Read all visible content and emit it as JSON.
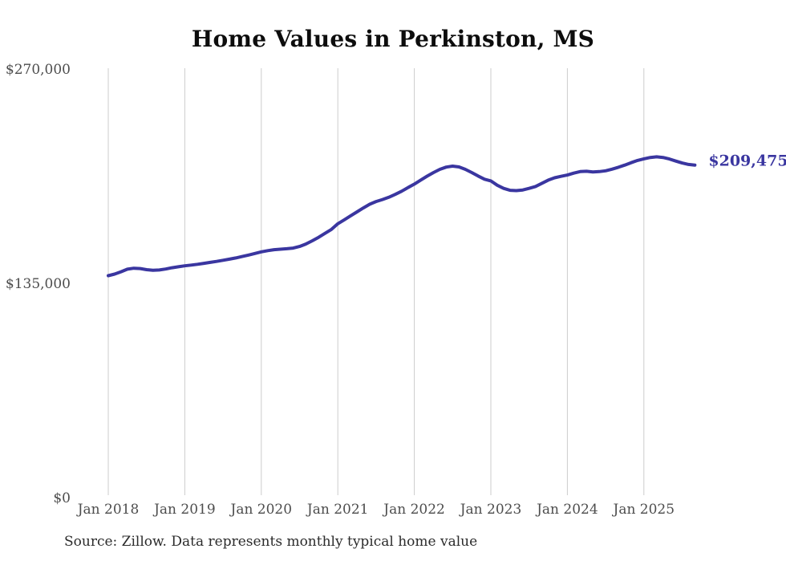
{
  "source": "Source: Zillow. Data represents monthly typical home value",
  "chart_data": {
    "type": "line",
    "title": "Home Values in Perkinston, MS",
    "xlabel": "",
    "ylabel": "",
    "ylim": [
      0,
      270000
    ],
    "y_ticks": [
      0,
      135000,
      270000
    ],
    "y_tick_labels": [
      "$0",
      "$135,000",
      "$270,000"
    ],
    "x_tick_labels": [
      "Jan 2018",
      "Jan 2019",
      "Jan 2020",
      "Jan 2021",
      "Jan 2022",
      "Jan 2023",
      "Jan 2024",
      "Jan 2025"
    ],
    "grid": "vertical-only",
    "legend": "none",
    "end_label": "$209,475",
    "colors": {
      "line": "#3a36a0",
      "gridline": "#cccccc",
      "tick_label": "#4d4d4d",
      "title": "#0d0d0d"
    },
    "series": [
      {
        "name": "Typical home value",
        "months": [
          "2018-01",
          "2018-02",
          "2018-03",
          "2018-04",
          "2018-05",
          "2018-06",
          "2018-07",
          "2018-08",
          "2018-09",
          "2018-10",
          "2018-11",
          "2018-12",
          "2019-01",
          "2019-02",
          "2019-03",
          "2019-04",
          "2019-05",
          "2019-06",
          "2019-07",
          "2019-08",
          "2019-09",
          "2019-10",
          "2019-11",
          "2019-12",
          "2020-01",
          "2020-02",
          "2020-03",
          "2020-04",
          "2020-05",
          "2020-06",
          "2020-07",
          "2020-08",
          "2020-09",
          "2020-10",
          "2020-11",
          "2020-12",
          "2021-01",
          "2021-02",
          "2021-03",
          "2021-04",
          "2021-05",
          "2021-06",
          "2021-07",
          "2021-08",
          "2021-09",
          "2021-10",
          "2021-11",
          "2021-12",
          "2022-01",
          "2022-02",
          "2022-03",
          "2022-04",
          "2022-05",
          "2022-06",
          "2022-07",
          "2022-08",
          "2022-09",
          "2022-10",
          "2022-11",
          "2022-12",
          "2023-01",
          "2023-02",
          "2023-03",
          "2023-04",
          "2023-05",
          "2023-06",
          "2023-07",
          "2023-08",
          "2023-09",
          "2023-10",
          "2023-11",
          "2023-12",
          "2024-01",
          "2024-02",
          "2024-03",
          "2024-04",
          "2024-05",
          "2024-06",
          "2024-07",
          "2024-08",
          "2024-09",
          "2024-10",
          "2024-11",
          "2024-12",
          "2025-01",
          "2025-02",
          "2025-03",
          "2025-04",
          "2025-05",
          "2025-06",
          "2025-07",
          "2025-08",
          "2025-09"
        ],
        "values": [
          139800,
          140800,
          142300,
          143900,
          144500,
          144300,
          143600,
          143200,
          143400,
          144000,
          144800,
          145400,
          146000,
          146500,
          147000,
          147600,
          148200,
          148800,
          149500,
          150200,
          151000,
          151900,
          152800,
          153800,
          154800,
          155600,
          156200,
          156500,
          156800,
          157200,
          158200,
          159800,
          161800,
          164000,
          166500,
          169000,
          172500,
          175000,
          177500,
          180000,
          182500,
          184800,
          186500,
          187800,
          189200,
          191000,
          193000,
          195300,
          197500,
          200000,
          202500,
          204800,
          206800,
          208200,
          208800,
          208300,
          206800,
          204800,
          202600,
          200600,
          199500,
          196800,
          194800,
          193600,
          193400,
          193800,
          194800,
          196000,
          198000,
          200000,
          201500,
          202400,
          203200,
          204400,
          205400,
          205600,
          205200,
          205400,
          205900,
          206900,
          208100,
          209500,
          211000,
          212400,
          213400,
          214300,
          214700,
          214300,
          213300,
          212000,
          210800,
          209900,
          209475
        ]
      }
    ]
  }
}
